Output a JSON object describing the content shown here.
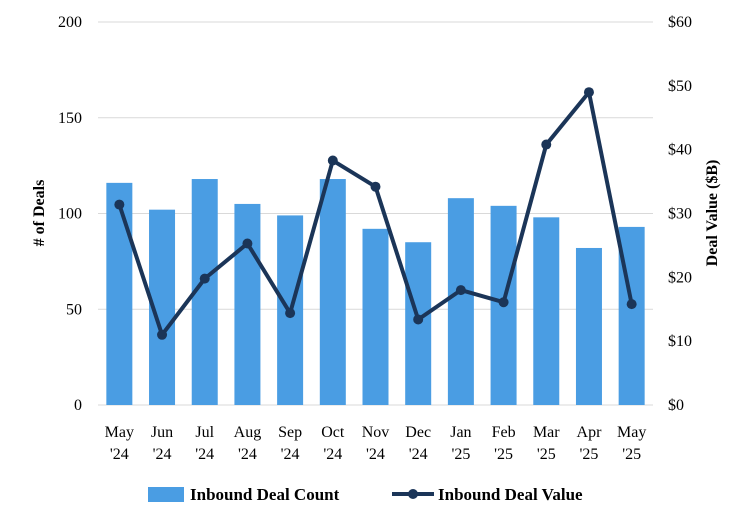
{
  "chart_data": {
    "type": "bar",
    "categories": [
      [
        "May",
        "'24"
      ],
      [
        "Jun",
        "'24"
      ],
      [
        "Jul",
        "'24"
      ],
      [
        "Aug",
        "'24"
      ],
      [
        "Sep",
        "'24"
      ],
      [
        "Oct",
        "'24"
      ],
      [
        "Nov",
        "'24"
      ],
      [
        "Dec",
        "'24"
      ],
      [
        "Jan",
        "'25"
      ],
      [
        "Feb",
        "'25"
      ],
      [
        "Mar",
        "'25"
      ],
      [
        "Apr",
        "'25"
      ],
      [
        "May",
        "'25"
      ]
    ],
    "series": [
      {
        "name": "Inbound Deal Count",
        "type": "bar",
        "axis": "left",
        "color": "#4a9de3",
        "values": [
          116,
          102,
          118,
          105,
          99,
          118,
          92,
          85,
          108,
          104,
          98,
          82,
          93
        ]
      },
      {
        "name": "Inbound Deal Value",
        "type": "line",
        "axis": "right",
        "color": "#1b3558",
        "values": [
          31.4,
          11.0,
          19.8,
          25.3,
          14.4,
          38.3,
          34.2,
          13.4,
          18.0,
          16.1,
          40.8,
          49.0,
          15.8
        ]
      }
    ],
    "y_left": {
      "label": "# of Deals",
      "ylim": [
        0,
        200
      ],
      "ticks": [
        0,
        50,
        100,
        150,
        200
      ],
      "tick_labels": [
        "0",
        "50",
        "100",
        "150",
        "200"
      ]
    },
    "y_right": {
      "label": "Deal Value ($B)",
      "ylim": [
        0,
        60
      ],
      "ticks": [
        0,
        10,
        20,
        30,
        40,
        50,
        60
      ],
      "tick_labels": [
        "$0",
        "$10",
        "$20",
        "$30",
        "$40",
        "$50",
        "$60"
      ]
    },
    "grid": true,
    "legend": "bottom"
  }
}
